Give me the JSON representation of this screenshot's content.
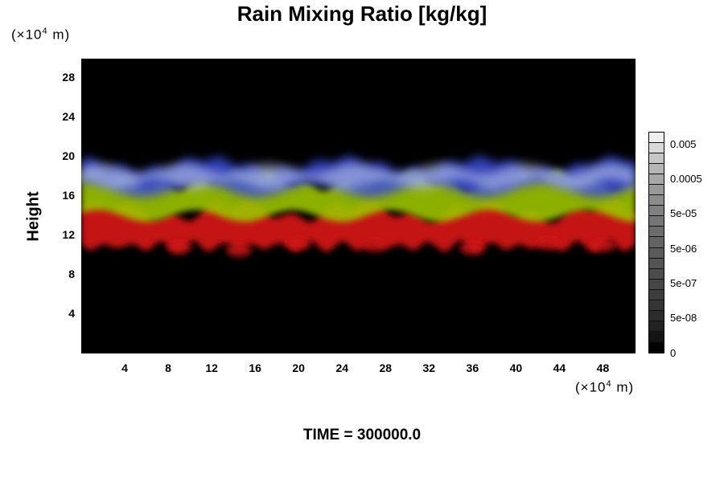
{
  "title": "Rain Mixing Ratio [kg/kg]",
  "y_unit": {
    "prefix": "(×10",
    "exp": "4",
    "suffix": " m)"
  },
  "x_unit": {
    "prefix": "(×10",
    "exp": "4",
    "suffix": " m)"
  },
  "y_axis_label": "Height",
  "time_label": "TIME = 300000.0",
  "chart_data": {
    "type": "heatmap",
    "title": "Rain Mixing Ratio [kg/kg]",
    "xlabel": "",
    "ylabel": "Height",
    "xlim": [
      0,
      51
    ],
    "ylim": [
      0,
      30
    ],
    "x_ticks": [
      4,
      8,
      12,
      16,
      20,
      24,
      28,
      32,
      36,
      40,
      44,
      48
    ],
    "y_ticks": [
      4,
      8,
      12,
      16,
      20,
      24,
      28
    ],
    "background_color": "#000000",
    "layer_base_y": 11,
    "layer_top_y": 19,
    "colorbar": {
      "labels": [
        "0.005",
        "0.0005",
        "5e-05",
        "5e-06",
        "5e-07",
        "5e-08",
        "0"
      ],
      "colors": [
        "#000000",
        "#141414",
        "#222222",
        "#2c2c2c",
        "#353535",
        "#3d3d3d",
        "#454545",
        "#4c4c4c",
        "#545454",
        "#5b5b5b",
        "#636363",
        "#6b6b6b",
        "#757575",
        "#808080",
        "#8c8c8c",
        "#999999",
        "#a7a7a7",
        "#b6b6b6",
        "#c6c6c6",
        "#d8d8d8",
        "#eeeeee"
      ]
    },
    "band_colors": {
      "red": "#d01818",
      "yellow_green": "#9cc400",
      "blue": "#3a4cd8",
      "white_blue": "#c8d4f0"
    },
    "grid": false
  }
}
